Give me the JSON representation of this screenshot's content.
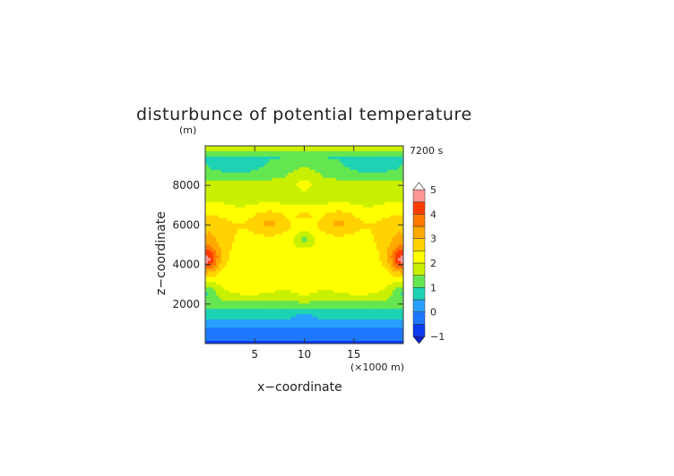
{
  "chart_data": {
    "type": "heatmap",
    "title": "disturbunce of potential temperature",
    "ylabel_unit": "(m)",
    "time_label": "7200 s",
    "xlabel": "x−coordinate",
    "ylabel": "z−coordinate",
    "x_unit_label": "(×1000 m)",
    "xlim": [
      0,
      20
    ],
    "ylim": [
      0,
      10000
    ],
    "xticks": [
      5,
      10,
      15
    ],
    "xtick_labels": [
      "5",
      "10",
      "15"
    ],
    "yticks": [
      2000,
      4000,
      6000,
      8000
    ],
    "ytick_labels": [
      "2000",
      "4000",
      "6000",
      "8000"
    ],
    "colorbar": {
      "min": -1,
      "max": 5,
      "step": 0.5,
      "tick_values": [
        -1,
        0,
        1,
        2,
        3,
        4,
        5
      ],
      "tick_labels": [
        "−1",
        "0",
        "1",
        "2",
        "3",
        "4",
        "5"
      ],
      "colors": [
        "#0a3cf0",
        "#1e78ff",
        "#28a0ff",
        "#1ed2b4",
        "#64e650",
        "#c8f000",
        "#ffff00",
        "#ffd200",
        "#ffaa00",
        "#ff7800",
        "#ff3c00",
        "#ff9696"
      ]
    },
    "fields": {
      "z_profile": [
        [
          0,
          -0.7
        ],
        [
          500,
          -0.2
        ],
        [
          1000,
          0.2
        ],
        [
          1600,
          0.9
        ],
        [
          2200,
          1.5
        ],
        [
          3000,
          2.0
        ],
        [
          4000,
          2.2
        ],
        [
          5000,
          2.2
        ],
        [
          6000,
          2.3
        ],
        [
          7000,
          1.9
        ],
        [
          8000,
          1.7
        ],
        [
          8800,
          1.2
        ],
        [
          9400,
          1.0
        ],
        [
          10000,
          2.0
        ]
      ],
      "features": [
        {
          "x": 0.0,
          "z": 4250,
          "amp": 2.2,
          "rx": 1.4,
          "rz": 700
        },
        {
          "x": 20.0,
          "z": 4250,
          "amp": 2.2,
          "rx": 1.4,
          "rz": 700
        },
        {
          "x": 0.5,
          "z": 5500,
          "amp": 0.7,
          "rx": 2.5,
          "rz": 1300
        },
        {
          "x": 19.5,
          "z": 5500,
          "amp": 0.7,
          "rx": 2.5,
          "rz": 1300
        },
        {
          "x": 6.5,
          "z": 6200,
          "amp": 0.8,
          "rx": 2.0,
          "rz": 700
        },
        {
          "x": 13.5,
          "z": 6200,
          "amp": 0.8,
          "rx": 2.0,
          "rz": 700
        },
        {
          "x": 10.0,
          "z": 6550,
          "amp": 0.5,
          "rx": 1.0,
          "rz": 300
        },
        {
          "x": 10.0,
          "z": 5300,
          "amp": -0.8,
          "rx": 1.0,
          "rz": 400
        },
        {
          "x": 4.5,
          "z": 2700,
          "amp": 0.4,
          "rx": 3.0,
          "rz": 500
        },
        {
          "x": 15.5,
          "z": 2700,
          "amp": 0.4,
          "rx": 3.0,
          "rz": 500
        },
        {
          "x": 10.0,
          "z": 2500,
          "amp": 0.3,
          "rx": 2.0,
          "rz": 400
        },
        {
          "x": 0.0,
          "z": 2600,
          "amp": -0.8,
          "rx": 1.2,
          "rz": 500
        },
        {
          "x": 20.0,
          "z": 2600,
          "amp": -0.8,
          "rx": 1.2,
          "rz": 500
        },
        {
          "x": 10.0,
          "z": 8400,
          "amp": 0.5,
          "rx": 1.5,
          "rz": 800
        },
        {
          "x": 3.0,
          "z": 9000,
          "amp": -0.5,
          "rx": 2.5,
          "rz": 500
        },
        {
          "x": 17.0,
          "z": 9000,
          "amp": -0.5,
          "rx": 2.5,
          "rz": 500
        },
        {
          "x": 10.0,
          "z": 1400,
          "amp": -0.4,
          "rx": 0.8,
          "rz": 300
        },
        {
          "x": 10.0,
          "z": 3800,
          "amp": 0.3,
          "rx": 1.0,
          "rz": 400
        }
      ]
    }
  }
}
